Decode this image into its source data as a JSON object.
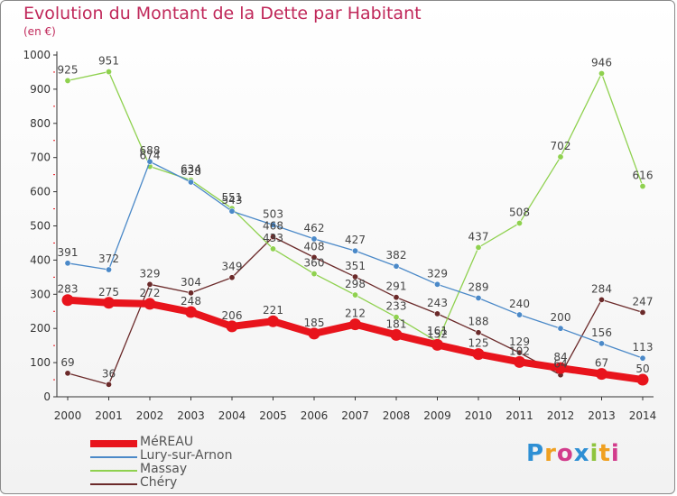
{
  "chart_data": {
    "type": "line",
    "title": "Evolution du Montant de la Dette par Habitant",
    "subtitle": "(en €)",
    "x": [
      "2000",
      "2001",
      "2002",
      "2003",
      "2004",
      "2005",
      "2006",
      "2007",
      "2008",
      "2009",
      "2010",
      "2011",
      "2012",
      "2013",
      "2014"
    ],
    "ylim": [
      0,
      1000
    ],
    "yticks": [
      "0",
      "100",
      "200",
      "300",
      "400",
      "500",
      "600",
      "700",
      "800",
      "900",
      "1000"
    ],
    "grid": false,
    "legend_position": "bottom-left",
    "series": [
      {
        "name": "MéREAU",
        "color": "#e8141c",
        "values": [
          283,
          275,
          272,
          248,
          206,
          221,
          185,
          212,
          181,
          152,
          125,
          102,
          84,
          67,
          50
        ]
      },
      {
        "name": "Lury-sur-Arnon",
        "color": "#4b89c8",
        "values": [
          391,
          372,
          688,
          628,
          543,
          503,
          462,
          427,
          382,
          329,
          289,
          240,
          200,
          156,
          113
        ]
      },
      {
        "name": "Massay",
        "color": "#8fd14f",
        "values": [
          925,
          951,
          674,
          634,
          551,
          433,
          360,
          298,
          233,
          161,
          437,
          508,
          702,
          946,
          616
        ]
      },
      {
        "name": "Chéry",
        "color": "#6b2a2a",
        "values": [
          69,
          36,
          329,
          304,
          349,
          468,
          408,
          351,
          291,
          243,
          188,
          129,
          64,
          284,
          247
        ]
      }
    ]
  },
  "logo": {
    "letters": [
      "P",
      "r",
      "o",
      "x",
      "i",
      "t",
      "i"
    ],
    "colors": [
      "#2e8fd4",
      "#f0a020",
      "#d23c8c",
      "#2e8fd4",
      "#8fc43e",
      "#f0a020",
      "#d23c8c"
    ]
  }
}
